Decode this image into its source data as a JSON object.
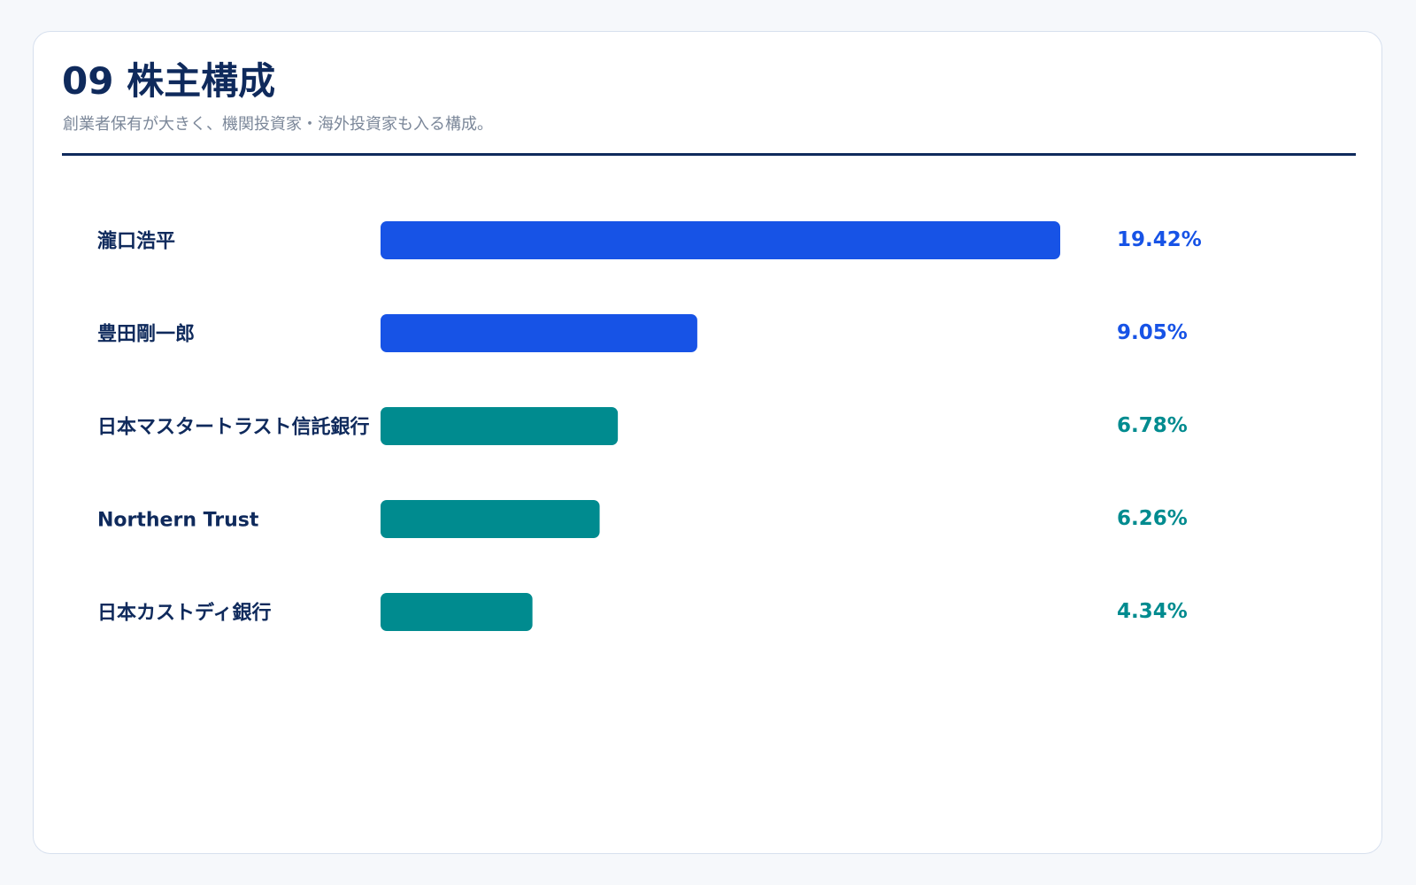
{
  "header": {
    "title": "09 株主構成",
    "subtitle": "創業者保有が大きく、機関投資家・海外投資家も入る構成。"
  },
  "colors": {
    "primary": "#1753e6",
    "secondary": "#008b8f",
    "heading": "#0f2a5c",
    "muted": "#7b8799"
  },
  "chart_data": {
    "type": "bar",
    "orientation": "horizontal",
    "title": "",
    "xlabel": "",
    "ylabel": "",
    "categories": [
      "瀧口浩平",
      "豊田剛一郎",
      "日本マスタートラスト信託銀行",
      "Northern Trust",
      "日本カストディ銀行"
    ],
    "values": [
      19.42,
      9.05,
      6.78,
      6.26,
      4.34
    ],
    "value_labels": [
      "19.42%",
      "9.05%",
      "6.78%",
      "6.26%",
      "4.34%"
    ],
    "bar_colors": [
      "#1753e6",
      "#1753e6",
      "#008b8f",
      "#008b8f",
      "#008b8f"
    ],
    "xlim": [
      0,
      19.42
    ],
    "grid": false,
    "legend": "none"
  }
}
